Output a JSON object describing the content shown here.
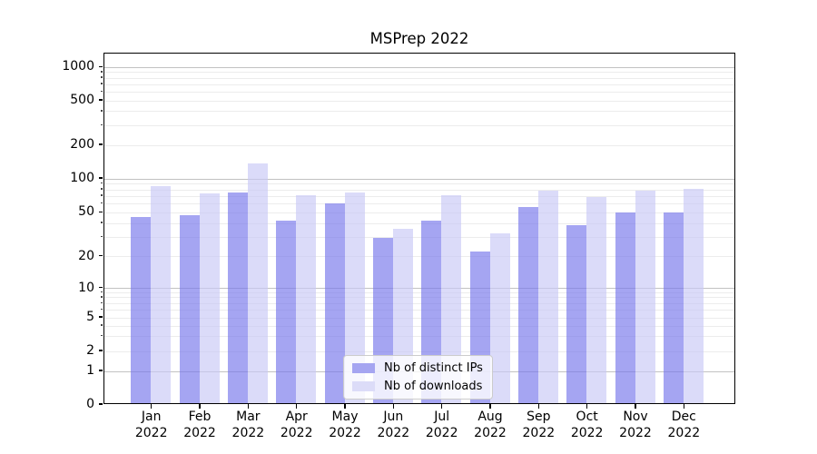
{
  "chart_data": {
    "type": "bar",
    "title": "MSPrep 2022",
    "categories": [
      "Jan 2022",
      "Feb 2022",
      "Mar 2022",
      "Apr 2022",
      "May 2022",
      "Jun 2022",
      "Jul 2022",
      "Aug 2022",
      "Sep 2022",
      "Oct 2022",
      "Nov 2022",
      "Dec 2022"
    ],
    "months": [
      "Jan",
      "Feb",
      "Mar",
      "Apr",
      "May",
      "Jun",
      "Jul",
      "Aug",
      "Sep",
      "Oct",
      "Nov",
      "Dec"
    ],
    "year": "2022",
    "series": [
      {
        "name": "Nb of distinct IPs",
        "color": "#a5a5f1",
        "fill": "rgba(117,117,235,0.65)",
        "values": [
          45,
          47,
          75,
          42,
          60,
          29,
          42,
          22,
          56,
          38,
          50,
          50
        ]
      },
      {
        "name": "Nb of downloads",
        "color": "#dcdcf8",
        "fill": "rgba(199,199,246,0.65)",
        "values": [
          85,
          74,
          135,
          71,
          75,
          35,
          71,
          32,
          78,
          68,
          78,
          80
        ]
      }
    ],
    "xlabel": "",
    "ylabel": "",
    "yscale": "symlog",
    "y_ticks": [
      0,
      1,
      2,
      5,
      10,
      20,
      50,
      100,
      200,
      500,
      1000
    ],
    "ylim": [
      0,
      1300
    ],
    "grid": true,
    "legend_position": "lower center"
  },
  "colors": {
    "background": "#ffffff",
    "major_grid": "#c2c2c2",
    "minor_grid": "#ececec",
    "axis": "#000000",
    "text": "#000000"
  }
}
